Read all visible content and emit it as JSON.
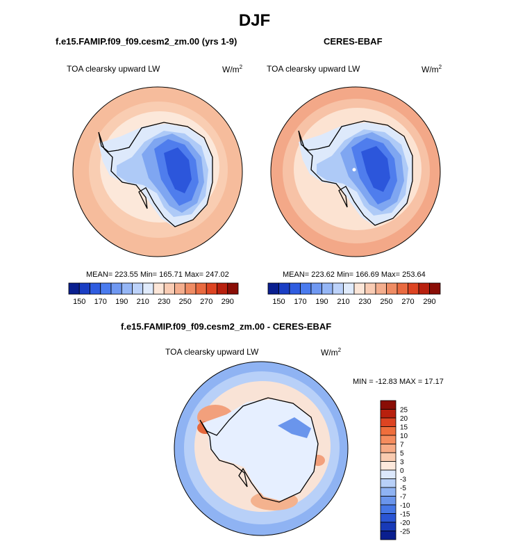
{
  "figure": {
    "title": "DJF",
    "units_base": "W/m",
    "units_exp": "2"
  },
  "panels": {
    "model": {
      "title": "f.e15.FAMIP.f09_f09.cesm2_zm.00 (yrs 1-9)",
      "variable": "TOA clearsky upward LW",
      "stats": "MEAN= 223.55  Min= 165.71  Max= 247.02"
    },
    "obs": {
      "title": "CERES-EBAF",
      "variable": "TOA clearsky upward LW",
      "stats": "MEAN= 223.62  Min= 166.69  Max= 253.64"
    },
    "diff": {
      "title": "f.e15.FAMIP.f09_f09.cesm2_zm.00 - CERES-EBAF",
      "variable": "TOA clearsky upward LW",
      "stats": "MIN = -12.83 MAX =  17.17"
    }
  },
  "chart_data": [
    {
      "type": "heatmap",
      "title": "f.e15.FAMIP.f09_f09.cesm2_zm.00 (yrs 1-9)",
      "variable": "TOA clearsky upward LW",
      "units": "W/m2",
      "projection": "south polar stereographic",
      "mean": 223.55,
      "min": 165.71,
      "max": 247.02,
      "colorbar": {
        "levels": [
          150,
          160,
          170,
          180,
          190,
          200,
          210,
          220,
          230,
          240,
          250,
          260,
          270,
          280,
          290
        ],
        "tick_labels": [
          "150",
          "170",
          "190",
          "210",
          "230",
          "250",
          "270",
          "290"
        ],
        "colors": [
          "#0a1f8f",
          "#1a3ec4",
          "#2f5ce0",
          "#4a7bef",
          "#6f98f2",
          "#95b6f6",
          "#bcd2fa",
          "#e0ebfc",
          "#fce6d8",
          "#f9ccb4",
          "#f4ae8e",
          "#ef8c64",
          "#e96a40",
          "#dd4422",
          "#b8200e",
          "#8a0e06"
        ]
      }
    },
    {
      "type": "heatmap",
      "title": "CERES-EBAF",
      "variable": "TOA clearsky upward LW",
      "units": "W/m2",
      "projection": "south polar stereographic",
      "mean": 223.62,
      "min": 166.69,
      "max": 253.64,
      "colorbar": {
        "levels": [
          150,
          160,
          170,
          180,
          190,
          200,
          210,
          220,
          230,
          240,
          250,
          260,
          270,
          280,
          290
        ],
        "tick_labels": [
          "150",
          "170",
          "190",
          "210",
          "230",
          "250",
          "270",
          "290"
        ],
        "colors": [
          "#0a1f8f",
          "#1a3ec4",
          "#2f5ce0",
          "#4a7bef",
          "#6f98f2",
          "#95b6f6",
          "#bcd2fa",
          "#e0ebfc",
          "#fce6d8",
          "#f9ccb4",
          "#f4ae8e",
          "#ef8c64",
          "#e96a40",
          "#dd4422",
          "#b8200e",
          "#8a0e06"
        ]
      }
    },
    {
      "type": "heatmap",
      "title": "f.e15.FAMIP.f09_f09.cesm2_zm.00 - CERES-EBAF",
      "variable": "TOA clearsky upward LW",
      "units": "W/m2",
      "projection": "south polar stereographic",
      "min": -12.83,
      "max": 17.17,
      "colorbar": {
        "tick_labels": [
          "25",
          "20",
          "15",
          "10",
          "7",
          "5",
          "3",
          "0",
          "-3",
          "-5",
          "-7",
          "-10",
          "-15",
          "-20",
          "-25"
        ],
        "colors": [
          "#8a0e06",
          "#b8200e",
          "#dd4422",
          "#ef6e3c",
          "#f58c5e",
          "#f7ab86",
          "#f9cbb0",
          "#fde9dc",
          "#dce8fb",
          "#b8d0f8",
          "#8fb3f3",
          "#6a95ec",
          "#4677e6",
          "#2a55d4",
          "#183ab8",
          "#0a1f8f"
        ]
      }
    }
  ]
}
